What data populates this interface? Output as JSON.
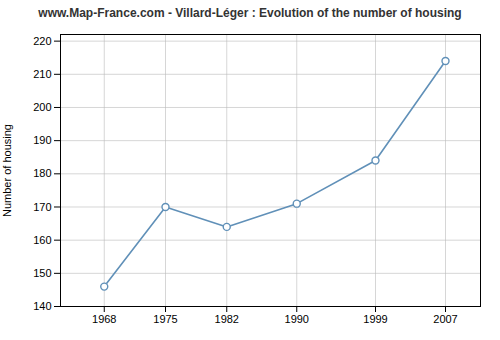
{
  "chart_data": {
    "type": "line",
    "title": "www.Map-France.com - Villard-Léger : Evolution of the number of housing",
    "ylabel": "Number of housing",
    "x": [
      1968,
      1975,
      1982,
      1990,
      1999,
      2007
    ],
    "values": [
      146,
      170,
      164,
      171,
      184,
      214
    ],
    "color": "#6090b8",
    "marker": "circle",
    "xlim": [
      1963,
      2011
    ],
    "xticks": [
      1968,
      1975,
      1982,
      1990,
      1999,
      2007
    ],
    "ylim": [
      140,
      222
    ],
    "yticks": [
      140,
      150,
      160,
      170,
      180,
      190,
      200,
      210,
      220
    ],
    "grid": true
  }
}
